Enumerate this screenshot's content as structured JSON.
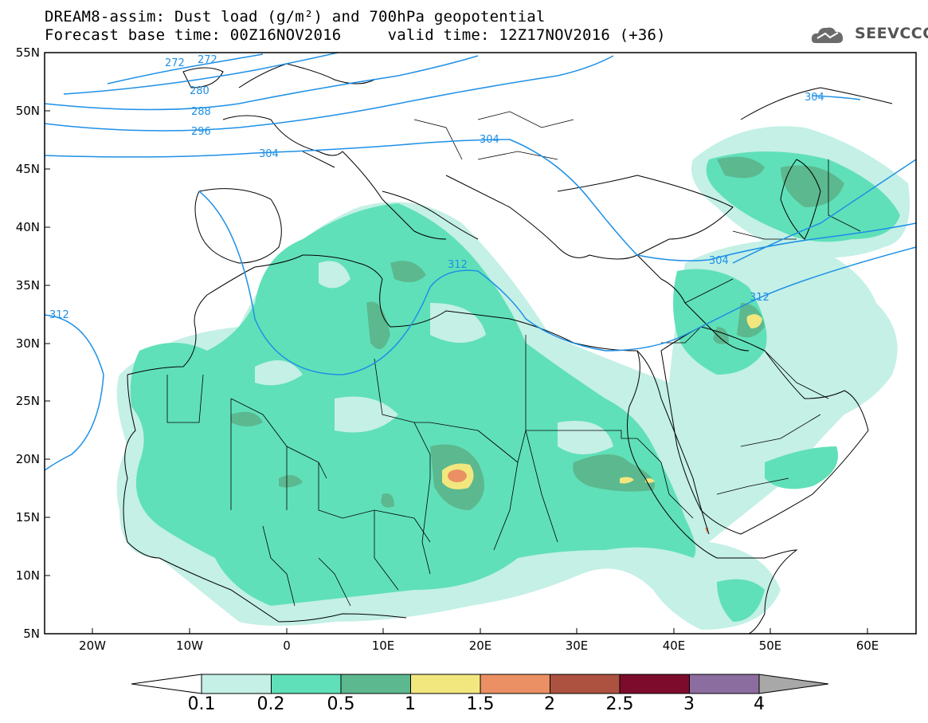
{
  "title": {
    "line1": "DREAM8-assim: Dust load (g/m²) and 700hPa geopotential",
    "line2": "Forecast base time: 00Z16NOV2016     valid time: 12Z17NOV2016 (+36)"
  },
  "logo": {
    "text": "SEEVCCC",
    "icon": "cloud-icon"
  },
  "map": {
    "lat_labels": [
      "55N",
      "50N",
      "45N",
      "40N",
      "35N",
      "30N",
      "25N",
      "20N",
      "15N",
      "10N",
      "5N"
    ],
    "lon_labels": [
      "20W",
      "10W",
      "0",
      "10E",
      "20E",
      "30E",
      "40E",
      "50E",
      "60E"
    ],
    "lon_range": [
      -25,
      65
    ],
    "lat_range": [
      5,
      55
    ],
    "contour_labels": [
      "272",
      "272",
      "280",
      "288",
      "296",
      "304",
      "304",
      "304",
      "312",
      "312",
      "304",
      "312"
    ]
  },
  "colorbar": {
    "labels": [
      "0.1",
      "0.2",
      "0.5",
      "1",
      "1.5",
      "2",
      "2.5",
      "3",
      "4"
    ],
    "colors": [
      "#c4f0e6",
      "#60e0b8",
      "#5cb88f",
      "#f2e77e",
      "#eb9064",
      "#ad5241",
      "#7d0b2c",
      "#8c6da0",
      "#a8a8a8"
    ]
  },
  "colors": {
    "contour": "#1e90e6",
    "light": "#c4f0e6",
    "medium": "#60e0b8",
    "dark": "#5cb88f",
    "yellow": "#f2e77e",
    "orange": "#eb9064"
  }
}
